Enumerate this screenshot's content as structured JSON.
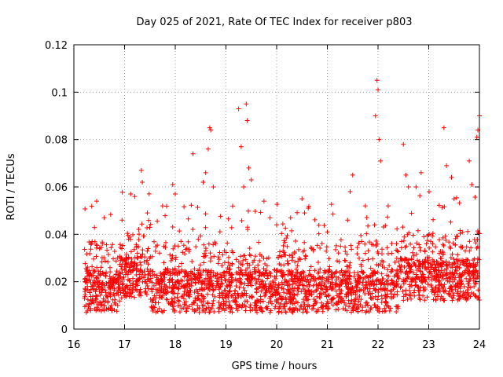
{
  "chart_data": {
    "type": "scatter",
    "title": "Day 025 of 2021, Rate Of TEC Index for receiver p803",
    "xlabel": "GPS time / hours",
    "ylabel": "ROTI / TECUs",
    "xlim": [
      16,
      24
    ],
    "ylim": [
      0,
      0.12
    ],
    "xticks": [
      16,
      17,
      18,
      19,
      20,
      21,
      22,
      23,
      24
    ],
    "xtick_labels": [
      "16",
      "17",
      "18",
      "19",
      "20",
      "21",
      "22",
      "23",
      "24"
    ],
    "yticks": [
      0,
      0.02,
      0.04,
      0.06,
      0.08,
      0.1,
      0.12
    ],
    "ytick_labels": [
      "0",
      "0.02",
      "0.04",
      "0.06",
      "0.08",
      "0.1",
      "0.12"
    ],
    "grid": true,
    "marker": "plus",
    "series": [
      {
        "name": "ROTI",
        "color": "#ff0000",
        "points": [
          [
            16.45,
            0.054
          ],
          [
            16.6,
            0.047
          ],
          [
            16.95,
            0.046
          ],
          [
            17.12,
            0.057
          ],
          [
            17.2,
            0.056
          ],
          [
            17.33,
            0.067
          ],
          [
            17.35,
            0.062
          ],
          [
            17.45,
            0.049
          ],
          [
            17.75,
            0.052
          ],
          [
            17.95,
            0.061
          ],
          [
            18.0,
            0.057
          ],
          [
            18.35,
            0.074
          ],
          [
            18.55,
            0.062
          ],
          [
            18.6,
            0.066
          ],
          [
            18.65,
            0.076
          ],
          [
            18.68,
            0.085
          ],
          [
            18.7,
            0.084
          ],
          [
            18.75,
            0.06
          ],
          [
            19.25,
            0.093
          ],
          [
            19.3,
            0.077
          ],
          [
            19.35,
            0.06
          ],
          [
            19.4,
            0.095
          ],
          [
            19.42,
            0.088
          ],
          [
            19.45,
            0.068
          ],
          [
            19.5,
            0.063
          ],
          [
            19.75,
            0.054
          ],
          [
            20.0,
            0.044
          ],
          [
            20.5,
            0.055
          ],
          [
            20.55,
            0.049
          ],
          [
            21.0,
            0.041
          ],
          [
            21.4,
            0.046
          ],
          [
            21.45,
            0.058
          ],
          [
            21.5,
            0.065
          ],
          [
            21.75,
            0.052
          ],
          [
            21.95,
            0.09
          ],
          [
            21.98,
            0.105
          ],
          [
            22.0,
            0.101
          ],
          [
            22.02,
            0.08
          ],
          [
            22.05,
            0.071
          ],
          [
            22.2,
            0.052
          ],
          [
            22.5,
            0.078
          ],
          [
            22.55,
            0.065
          ],
          [
            22.6,
            0.06
          ],
          [
            22.75,
            0.06
          ],
          [
            22.85,
            0.066
          ],
          [
            23.3,
            0.085
          ],
          [
            23.35,
            0.069
          ],
          [
            23.45,
            0.064
          ],
          [
            23.5,
            0.055
          ],
          [
            23.8,
            0.071
          ],
          [
            23.85,
            0.061
          ],
          [
            23.95,
            0.081
          ],
          [
            23.97,
            0.084
          ],
          [
            24.0,
            0.09
          ]
        ],
        "generated_density": {
          "description": "dense cloud of points between x 16.2 and 24, baseline ~0.015 with spread up to ~0.035",
          "x_start": 16.2,
          "x_end": 24.0,
          "count": 2600,
          "base": 0.016,
          "spread": 0.03
        }
      }
    ]
  }
}
